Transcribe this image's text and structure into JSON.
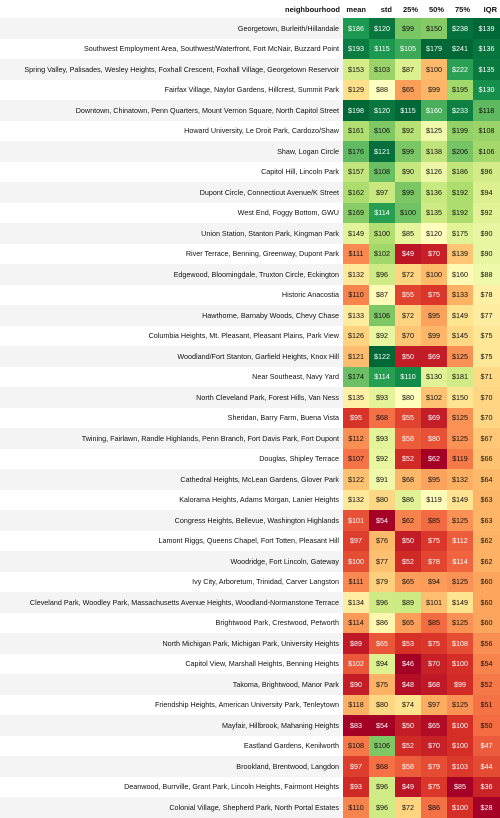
{
  "chart_data": {
    "type": "table",
    "columns": [
      "neighbourhood",
      "mean",
      "std",
      "25%",
      "50%",
      "75%",
      "IQR"
    ],
    "rows": [
      {
        "label": "Georgetown, Burleith/Hillandale",
        "values": [
          "$186",
          "$120",
          "$99",
          "$150",
          "$238",
          "$139"
        ]
      },
      {
        "label": "Southwest Employment Area, Southwest/Waterfront, Fort McNair, Buzzard Point",
        "values": [
          "$193",
          "$115",
          "$105",
          "$179",
          "$241",
          "$136"
        ]
      },
      {
        "label": "Spring Valley, Palisades, Wesley Heights, Foxhall Crescent, Foxhall Village, Georgetown Reservoir",
        "values": [
          "$153",
          "$103",
          "$87",
          "$100",
          "$222",
          "$135"
        ]
      },
      {
        "label": "Fairfax Village, Naylor Gardens, Hillcrest, Summit Park",
        "values": [
          "$129",
          "$88",
          "$65",
          "$99",
          "$195",
          "$130"
        ]
      },
      {
        "label": "Downtown, Chinatown, Penn Quarters, Mount Vernon Square, North Capitol Street",
        "values": [
          "$198",
          "$120",
          "$115",
          "$160",
          "$233",
          "$118"
        ]
      },
      {
        "label": "Howard University, Le Droit Park, Cardozo/Shaw",
        "values": [
          "$161",
          "$106",
          "$92",
          "$125",
          "$199",
          "$108"
        ]
      },
      {
        "label": "Shaw, Logan Circle",
        "values": [
          "$176",
          "$121",
          "$99",
          "$138",
          "$206",
          "$106"
        ]
      },
      {
        "label": "Capitol Hill, Lincoln Park",
        "values": [
          "$157",
          "$108",
          "$90",
          "$126",
          "$186",
          "$96"
        ]
      },
      {
        "label": "Dupont Circle, Connecticut Avenue/K Street",
        "values": [
          "$162",
          "$97",
          "$99",
          "$136",
          "$192",
          "$94"
        ]
      },
      {
        "label": "West End, Foggy Bottom, GWU",
        "values": [
          "$169",
          "$114",
          "$100",
          "$135",
          "$192",
          "$92"
        ]
      },
      {
        "label": "Union Station, Stanton Park, Kingman Park",
        "values": [
          "$149",
          "$100",
          "$85",
          "$120",
          "$175",
          "$90"
        ]
      },
      {
        "label": "River Terrace, Benning, Greenway, Dupont Park",
        "values": [
          "$111",
          "$102",
          "$49",
          "$70",
          "$139",
          "$90"
        ]
      },
      {
        "label": "Edgewood, Bloomingdale, Truxton Circle, Eckington",
        "values": [
          "$132",
          "$96",
          "$72",
          "$100",
          "$160",
          "$88"
        ]
      },
      {
        "label": "Historic Anacostia",
        "values": [
          "$110",
          "$87",
          "$55",
          "$75",
          "$133",
          "$78"
        ]
      },
      {
        "label": "Hawthorne, Barnaby Woods, Chevy Chase",
        "values": [
          "$133",
          "$106",
          "$72",
          "$95",
          "$149",
          "$77"
        ]
      },
      {
        "label": "Columbia Heights, Mt. Pleasant, Pleasant Plains, Park View",
        "values": [
          "$126",
          "$92",
          "$70",
          "$99",
          "$145",
          "$75"
        ]
      },
      {
        "label": "Woodland/Fort Stanton, Garfield Heights, Knox Hill",
        "values": [
          "$121",
          "$122",
          "$50",
          "$69",
          "$125",
          "$75"
        ]
      },
      {
        "label": "Near Southeast, Navy Yard",
        "values": [
          "$174",
          "$114",
          "$110",
          "$130",
          "$181",
          "$71"
        ]
      },
      {
        "label": "North Cleveland Park, Forest Hills, Van Ness",
        "values": [
          "$135",
          "$93",
          "$80",
          "$102",
          "$150",
          "$70"
        ]
      },
      {
        "label": "Sheridan, Barry Farm, Buena Vista",
        "values": [
          "$95",
          "$68",
          "$55",
          "$69",
          "$125",
          "$70"
        ]
      },
      {
        "label": "Twining, Fairlawn, Randle Highlands, Penn Branch, Fort Davis Park, Fort Dupont",
        "values": [
          "$112",
          "$93",
          "$58",
          "$80",
          "$125",
          "$67"
        ]
      },
      {
        "label": "Douglas, Shipley Terrace",
        "values": [
          "$107",
          "$92",
          "$52",
          "$62",
          "$119",
          "$66"
        ]
      },
      {
        "label": "Cathedral Heights, McLean Gardens, Glover Park",
        "values": [
          "$122",
          "$91",
          "$68",
          "$95",
          "$132",
          "$64"
        ]
      },
      {
        "label": "Kalorama Heights, Adams Morgan, Lanier Heights",
        "values": [
          "$132",
          "$80",
          "$86",
          "$119",
          "$149",
          "$63"
        ]
      },
      {
        "label": "Congress Heights, Bellevue, Washington Highlands",
        "values": [
          "$101",
          "$54",
          "$62",
          "$85",
          "$125",
          "$63"
        ]
      },
      {
        "label": "Lamont Riggs, Queens Chapel, Fort Totten, Pleasant Hill",
        "values": [
          "$97",
          "$76",
          "$50",
          "$75",
          "$112",
          "$62"
        ]
      },
      {
        "label": "Woodridge, Fort Lincoln, Gateway",
        "values": [
          "$100",
          "$77",
          "$52",
          "$78",
          "$114",
          "$62"
        ]
      },
      {
        "label": "Ivy City, Arboretum, Trinidad, Carver Langston",
        "values": [
          "$111",
          "$79",
          "$65",
          "$94",
          "$125",
          "$60"
        ]
      },
      {
        "label": "Cleveland Park, Woodley Park, Massachusetts Avenue Heights, Woodland-Normanstone Terrace",
        "values": [
          "$134",
          "$96",
          "$89",
          "$101",
          "$149",
          "$60"
        ]
      },
      {
        "label": "Brightwood Park, Crestwood, Petworth",
        "values": [
          "$114",
          "$86",
          "$65",
          "$85",
          "$125",
          "$60"
        ]
      },
      {
        "label": "North Michigan Park, Michigan Park, University Heights",
        "values": [
          "$89",
          "$65",
          "$53",
          "$75",
          "$108",
          "$56"
        ]
      },
      {
        "label": "Capitol View, Marshall Heights, Benning Heights",
        "values": [
          "$102",
          "$94",
          "$46",
          "$70",
          "$100",
          "$54"
        ]
      },
      {
        "label": "Takoma, Brightwood, Manor Park",
        "values": [
          "$90",
          "$75",
          "$48",
          "$68",
          "$99",
          "$52"
        ]
      },
      {
        "label": "Friendship Heights, American University Park, Tenleytown",
        "values": [
          "$118",
          "$80",
          "$74",
          "$97",
          "$125",
          "$51"
        ]
      },
      {
        "label": "Mayfair, Hillbrook, Mahaning Heights",
        "values": [
          "$83",
          "$54",
          "$50",
          "$65",
          "$100",
          "$50"
        ]
      },
      {
        "label": "Eastland Gardens, Kenilworth",
        "values": [
          "$108",
          "$106",
          "$52",
          "$70",
          "$100",
          "$47"
        ]
      },
      {
        "label": "Brookland, Brentwood, Langdon",
        "values": [
          "$97",
          "$68",
          "$58",
          "$79",
          "$103",
          "$44"
        ]
      },
      {
        "label": "Deanwood, Burrville, Grant Park, Lincoln Heights, Fairmont Heights",
        "values": [
          "$93",
          "$96",
          "$49",
          "$75",
          "$85",
          "$36"
        ]
      },
      {
        "label": "Colonial Village, Shepherd Park, North Portal Estates",
        "values": [
          "$110",
          "$96",
          "$72",
          "$86",
          "$100",
          "$28"
        ]
      }
    ],
    "colormap": "RdYlGn",
    "color_scale": "per-column"
  }
}
